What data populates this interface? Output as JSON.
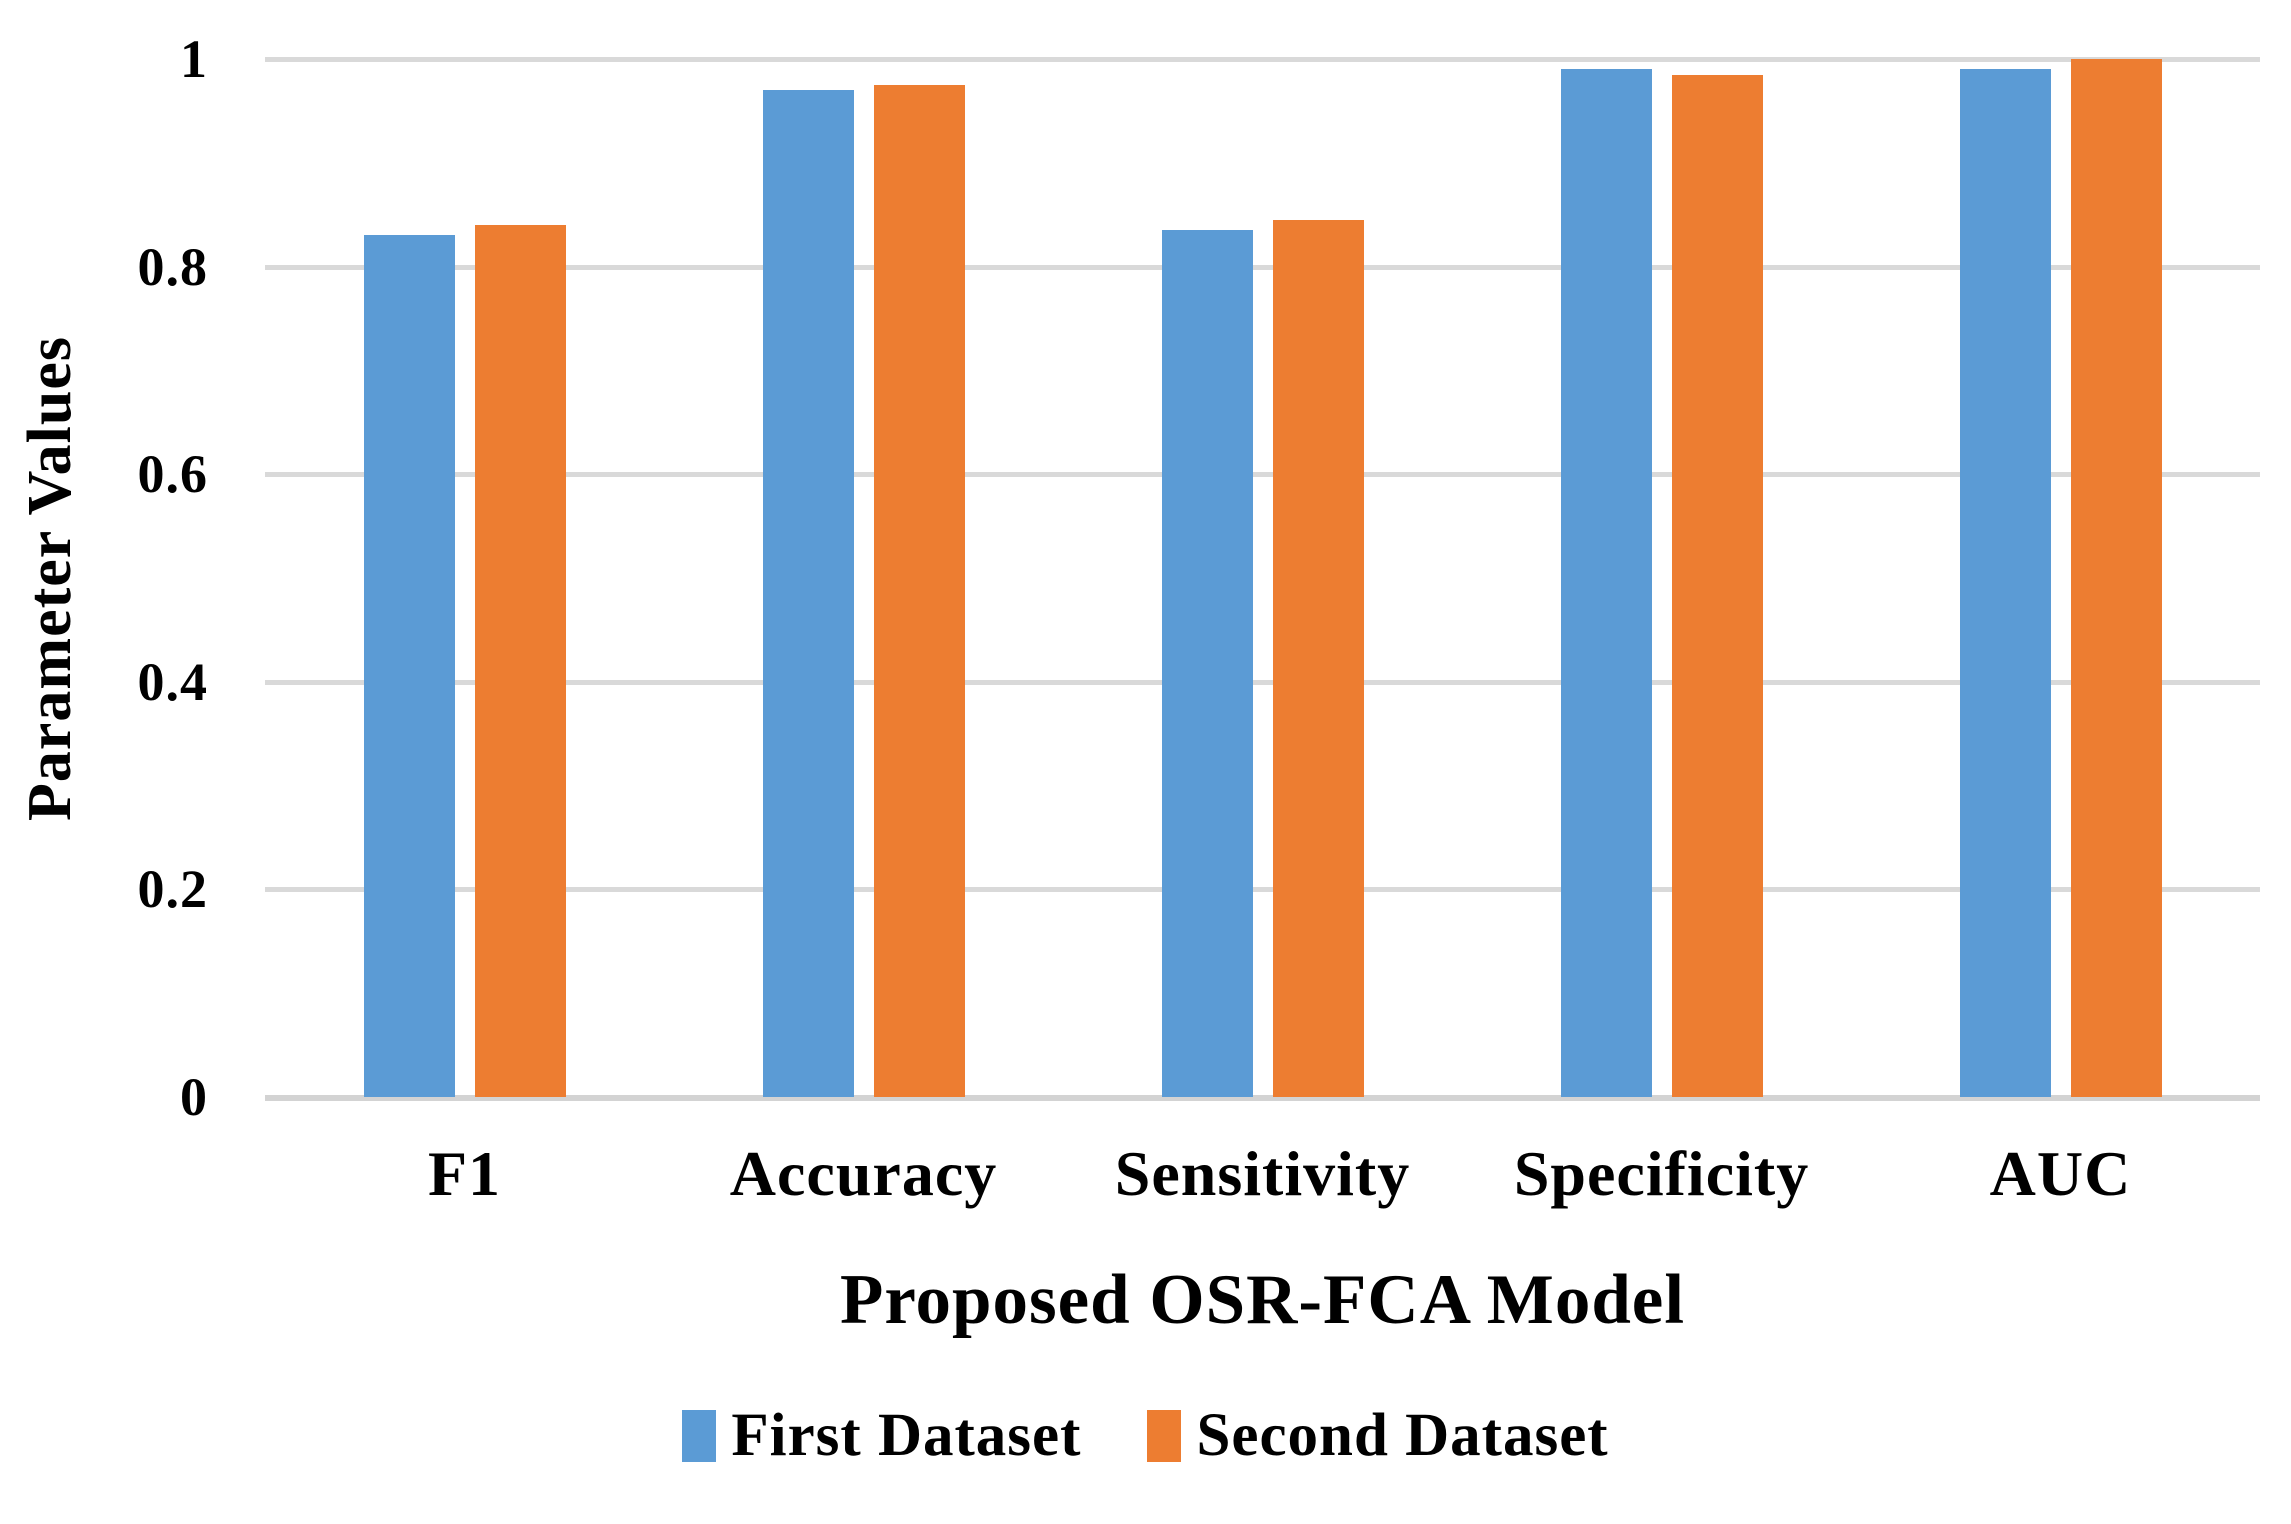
{
  "chart": {
    "y_axis_title": "Parameter Values",
    "x_axis_title": "Proposed OSR-FCA Model"
  },
  "colors": {
    "series_blue": "#5B9BD5",
    "series_orange": "#ED7D31",
    "gridline": "#D9D9D9",
    "text": "#000000",
    "background": "#FFFFFF"
  },
  "legend": {
    "items": [
      {
        "label": "First Dataset",
        "color": "#5B9BD5",
        "swatch": "blue-square"
      },
      {
        "label": "Second Dataset",
        "color": "#ED7D31",
        "swatch": "orange-square"
      }
    ],
    "position": "bottom-center"
  },
  "chart_data": {
    "type": "bar",
    "title": "",
    "categories": [
      "F1",
      "Accuracy",
      "Sensitivity",
      "Specificity",
      "AUC"
    ],
    "series": [
      {
        "name": "First Dataset",
        "color": "#5B9BD5",
        "values": [
          0.83,
          0.97,
          0.835,
          0.99,
          0.99
        ]
      },
      {
        "name": "Second Dataset",
        "color": "#ED7D31",
        "values": [
          0.84,
          0.975,
          0.845,
          0.985,
          1.0
        ]
      }
    ],
    "xlabel": "Proposed OSR-FCA Model",
    "ylabel": "Parameter Values",
    "ylim": [
      0,
      1
    ],
    "yticks": [
      0,
      0.2,
      0.4,
      0.6,
      0.8,
      1
    ],
    "ytick_labels": [
      "0",
      "0.2",
      "0.4",
      "0.6",
      "0.8",
      "1"
    ],
    "grid": "horizontal",
    "legend_position": "bottom"
  }
}
